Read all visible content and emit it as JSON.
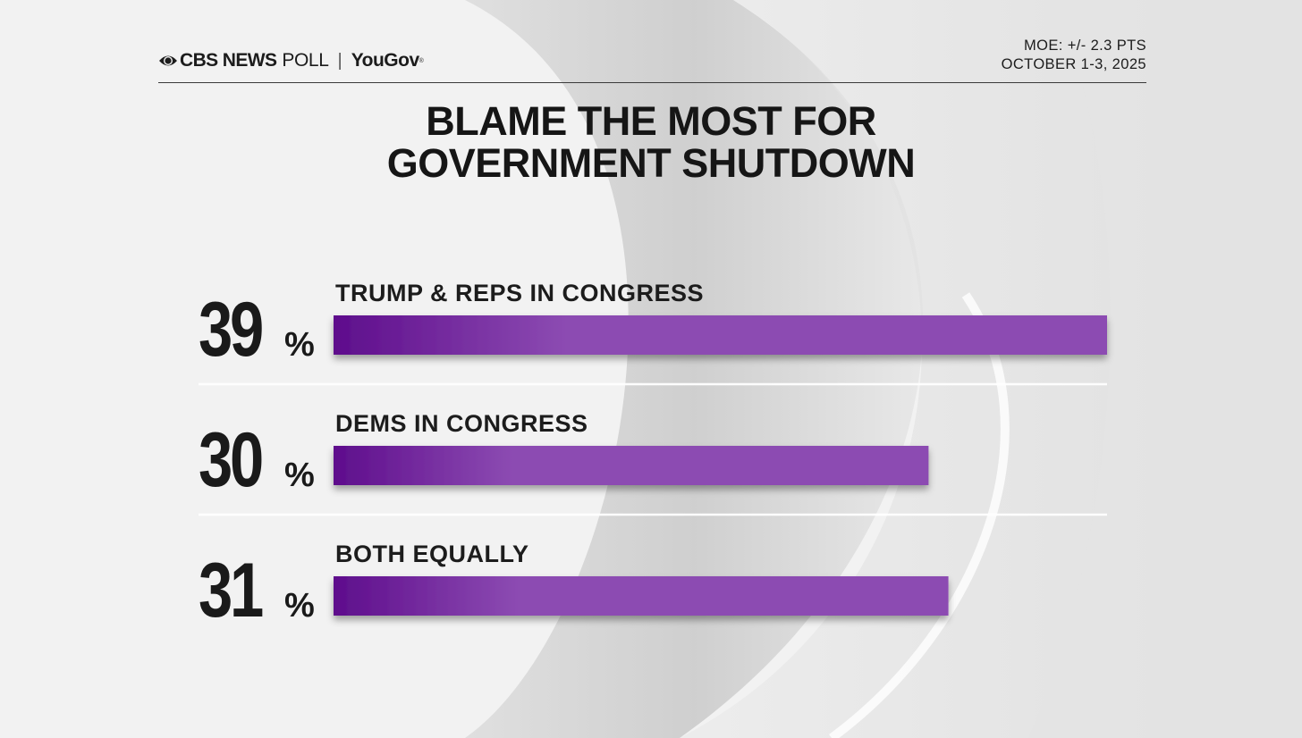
{
  "header": {
    "brand_cbs": "CBS NEWS",
    "brand_poll": "POLL",
    "brand_separator": "|",
    "brand_yougov": "YouGov",
    "brand_reg": "®",
    "moe": "MOE: +/- 2.3 PTS",
    "dates": "OCTOBER 1-3, 2025"
  },
  "colors": {
    "bar_dark": "#5e0d8c",
    "bar_light": "#8c4bb2",
    "number": "#1a1a1a",
    "label": "#1c1c1c"
  },
  "chart_data": {
    "type": "bar",
    "orientation": "horizontal",
    "title": "BLAME THE MOST FOR GOVERNMENT SHUTDOWN",
    "title_lines": [
      "BLAME THE MOST FOR",
      "GOVERNMENT SHUTDOWN"
    ],
    "categories": [
      "TRUMP & REPS IN CONGRESS",
      "DEMS IN CONGRESS",
      "BOTH EQUALLY"
    ],
    "values": [
      39,
      30,
      31
    ],
    "value_labels": [
      "39",
      "30",
      "31"
    ],
    "unit": "%",
    "xlim": [
      0,
      39
    ]
  }
}
